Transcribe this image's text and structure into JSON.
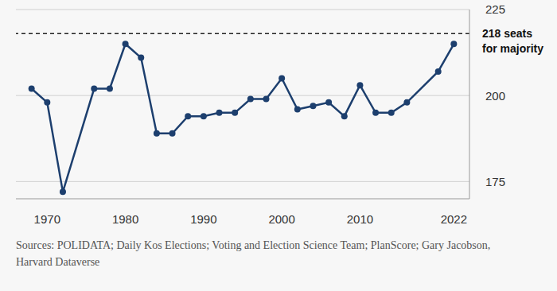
{
  "chart_data": {
    "type": "line",
    "x": [
      1968,
      1970,
      1972,
      1976,
      1978,
      1980,
      1982,
      1984,
      1986,
      1988,
      1990,
      1992,
      1994,
      1996,
      1998,
      2000,
      2002,
      2004,
      2006,
      2008,
      2010,
      2012,
      2014,
      2016,
      2020,
      2022
    ],
    "values": [
      202,
      198,
      172,
      202,
      202,
      215,
      211,
      189,
      189,
      194,
      194,
      195,
      195,
      199,
      199,
      205,
      196,
      197,
      198,
      194,
      203,
      195,
      195,
      198,
      207,
      215
    ],
    "color": "#1d3f6e",
    "marker": "circle",
    "xlim": [
      1966,
      2024
    ],
    "xticks": [
      1970,
      1980,
      1990,
      2000,
      2010,
      2022
    ],
    "ylim": [
      170,
      225
    ],
    "yticks": [
      175,
      200,
      225
    ],
    "grid": true,
    "reference_line": {
      "y": 218,
      "label": [
        "218 seats",
        "for majority"
      ],
      "line_style": "dashed"
    },
    "source": "Sources: POLIDATA; Daily Kos Elections; Voting and Election Science Team; PlanScore; Gary Jacobson, Harvard Dataverse"
  }
}
